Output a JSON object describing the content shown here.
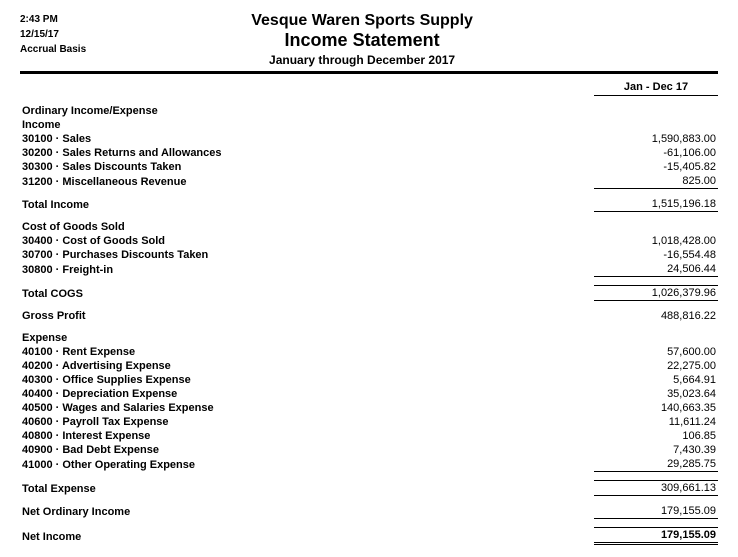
{
  "meta": {
    "time": "2:43 PM",
    "date": "12/15/17",
    "basis": "Accrual Basis"
  },
  "header": {
    "company": "Vesque Waren Sports Supply",
    "title": "Income Statement",
    "period": "January through December 2017"
  },
  "columns": {
    "main": "Jan - Dec 17"
  },
  "sections": {
    "ordinary": "Ordinary Income/Expense",
    "income_hdr": "Income",
    "income_items": [
      {
        "label": "30100 · Sales",
        "value": "1,590,883.00"
      },
      {
        "label": "30200 · Sales Returns and Allowances",
        "value": "-61,106.00"
      },
      {
        "label": "30300 · Sales Discounts Taken",
        "value": "-15,405.82"
      },
      {
        "label": "31200 · Miscellaneous Revenue",
        "value": "825.00"
      }
    ],
    "total_income": {
      "label": "Total Income",
      "value": "1,515,196.18"
    },
    "cogs_hdr": "Cost of Goods Sold",
    "cogs_items": [
      {
        "label": "30400 · Cost of Goods Sold",
        "value": "1,018,428.00"
      },
      {
        "label": "30700 · Purchases Discounts Taken",
        "value": "-16,554.48"
      },
      {
        "label": "30800 · Freight-in",
        "value": "24,506.44"
      }
    ],
    "total_cogs": {
      "label": "Total COGS",
      "value": "1,026,379.96"
    },
    "gross_profit": {
      "label": "Gross Profit",
      "value": "488,816.22"
    },
    "expense_hdr": "Expense",
    "expense_items": [
      {
        "label": "40100 · Rent Expense",
        "value": "57,600.00"
      },
      {
        "label": "40200 · Advertising Expense",
        "value": "22,275.00"
      },
      {
        "label": "40300 · Office Supplies Expense",
        "value": "5,664.91"
      },
      {
        "label": "40400 · Depreciation Expense",
        "value": "35,023.64"
      },
      {
        "label": "40500 · Wages and Salaries Expense",
        "value": "140,663.35"
      },
      {
        "label": "40600 · Payroll Tax Expense",
        "value": "11,611.24"
      },
      {
        "label": "40800 · Interest Expense",
        "value": "106.85"
      },
      {
        "label": "40900 · Bad Debt Expense",
        "value": "7,430.39"
      },
      {
        "label": "41000 · Other Operating Expense",
        "value": "29,285.75"
      }
    ],
    "total_expense": {
      "label": "Total Expense",
      "value": "309,661.13"
    },
    "net_ordinary": {
      "label": "Net Ordinary Income",
      "value": "179,155.09"
    },
    "net_income": {
      "label": "Net Income",
      "value": "179,155.09"
    }
  }
}
